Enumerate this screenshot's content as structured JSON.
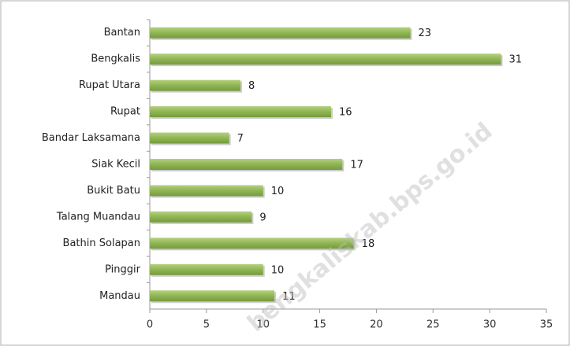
{
  "chart_data": {
    "type": "bar",
    "orientation": "horizontal",
    "categories": [
      "Bantan",
      "Bengkalis",
      "Rupat Utara",
      "Rupat",
      "Bandar Laksamana",
      "Siak Kecil",
      "Bukit Batu",
      "Talang Muandau",
      "Bathin Solapan",
      "Pinggir",
      "Mandau"
    ],
    "values": [
      23,
      31,
      8,
      16,
      7,
      17,
      10,
      9,
      18,
      10,
      11
    ],
    "color": "#8fb553",
    "xlim": [
      0,
      35
    ],
    "xticks": [
      0,
      5,
      10,
      15,
      20,
      25,
      30,
      35
    ],
    "grid": false,
    "watermark": "bengkaliskab.bps.go.id"
  }
}
